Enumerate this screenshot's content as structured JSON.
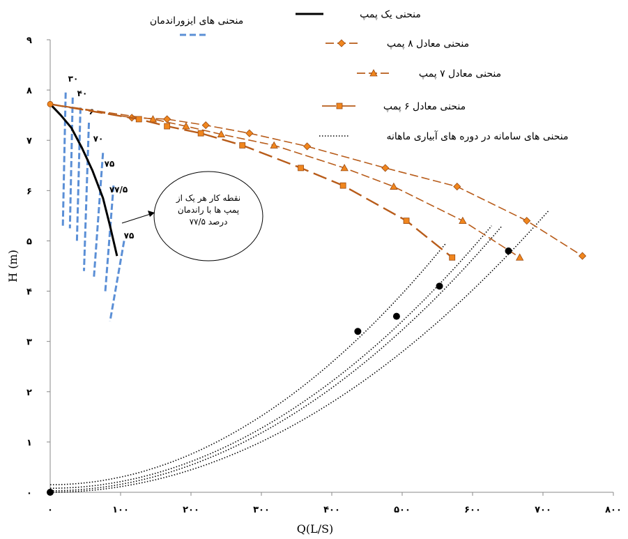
{
  "chart_data": {
    "type": "line",
    "xlabel": "Q(L/S)",
    "ylabel": "H (m)",
    "xlim": [
      0,
      800
    ],
    "ylim": [
      0,
      9
    ],
    "x_ticks": [
      {
        "value": 0,
        "label": "۰"
      },
      {
        "value": 100,
        "label": "۱۰۰"
      },
      {
        "value": 200,
        "label": "۲۰۰"
      },
      {
        "value": 300,
        "label": "۳۰۰"
      },
      {
        "value": 400,
        "label": "۴۰۰"
      },
      {
        "value": 500,
        "label": "۵۰۰"
      },
      {
        "value": 600,
        "label": "۶۰۰"
      },
      {
        "value": 700,
        "label": "۷۰۰"
      },
      {
        "value": 800,
        "label": "۸۰۰"
      }
    ],
    "y_ticks": [
      {
        "value": 0,
        "label": "۰"
      },
      {
        "value": 1,
        "label": "۱"
      },
      {
        "value": 2,
        "label": "۲"
      },
      {
        "value": 3,
        "label": "۳"
      },
      {
        "value": 4,
        "label": "۴"
      },
      {
        "value": 5,
        "label": "۵"
      },
      {
        "value": 6,
        "label": "۶"
      },
      {
        "value": 7,
        "label": "۷"
      },
      {
        "value": 8,
        "label": "۸"
      },
      {
        "value": 9,
        "label": "۹"
      }
    ],
    "grid": false,
    "legend_placement": "top-right",
    "series": [
      {
        "name": "منحنی یک پمپ",
        "style": "solid-thick",
        "color": "#000000",
        "marker": "none",
        "x": [
          0,
          15,
          30,
          45,
          60,
          75,
          85,
          95
        ],
        "y": [
          7.72,
          7.5,
          7.25,
          6.85,
          6.4,
          5.85,
          5.3,
          4.7
        ]
      },
      {
        "name": "منحنی معادل ۸ پمپ",
        "style": "dashed",
        "color": "#B85C1A",
        "marker_color": "#F0861E",
        "marker": "diamond",
        "x": [
          0,
          116,
          166,
          221,
          283,
          365,
          476,
          578,
          677,
          756
        ],
        "y": [
          7.72,
          7.45,
          7.42,
          7.3,
          7.14,
          6.88,
          6.45,
          6.08,
          5.4,
          4.7
        ]
      },
      {
        "name": "منحنی معادل ۷ پمپ",
        "style": "dashed",
        "color": "#B85C1A",
        "marker_color": "#F0861E",
        "marker": "triangle",
        "x": [
          0,
          146,
          193,
          243,
          318,
          418,
          488,
          586,
          667
        ],
        "y": [
          7.72,
          7.42,
          7.28,
          7.12,
          6.9,
          6.45,
          6.08,
          5.4,
          4.67
        ]
      },
      {
        "name": "منحنی معادل ۶ پمپ",
        "style": "long-dashed",
        "color": "#B85C1A",
        "marker_color": "#F0861E",
        "marker": "square",
        "x": [
          0,
          126,
          166,
          214,
          273,
          356,
          416,
          506,
          571
        ],
        "y": [
          7.72,
          7.42,
          7.28,
          7.14,
          6.9,
          6.45,
          6.1,
          5.4,
          4.67
        ]
      }
    ],
    "system_curves": {
      "name": "منحنی های سامانه در دوره های آبیاری ماهانه",
      "style": "dotted",
      "color": "#000000",
      "curves": [
        {
          "h0": 0.15,
          "x_end": 562,
          "y_end": 4.95
        },
        {
          "h0": 0.08,
          "x_end": 627,
          "y_end": 5.3
        },
        {
          "h0": 0.03,
          "x_end": 642,
          "y_end": 5.3
        },
        {
          "h0": 0.0,
          "x_end": 708,
          "y_end": 5.6
        }
      ],
      "operating_points": [
        {
          "x": 0,
          "y": 0
        },
        {
          "x": 437,
          "y": 3.2
        },
        {
          "x": 492,
          "y": 3.5
        },
        {
          "x": 553,
          "y": 4.1
        },
        {
          "x": 651,
          "y": 4.8
        }
      ]
    },
    "isoefficiency": {
      "name": "منحنی های ایزوراندمان",
      "color": "#5B8FD6",
      "lines": [
        {
          "label": "۳۰",
          "x1": 22,
          "y1": 7.95,
          "x2": 18,
          "y2": 5.3
        },
        {
          "label": "۴۰",
          "x1": 32,
          "y1": 7.85,
          "x2": 28,
          "y2": 5.25
        },
        {
          "label": "۶۰",
          "x1": 43,
          "y1": 7.65,
          "x2": 38,
          "y2": 5.0
        },
        {
          "label": "۷۰",
          "x1": 55,
          "y1": 7.35,
          "x2": 48,
          "y2": 4.4
        },
        {
          "label": "۷۵",
          "x1": 75,
          "y1": 6.75,
          "x2": 62,
          "y2": 4.25
        },
        {
          "label": "۷۷/۵",
          "x1": 90,
          "y1": 6.1,
          "x2": 78,
          "y2": 3.95
        },
        {
          "label": "۷۵",
          "x1": 105,
          "y1": 5.0,
          "x2": 85,
          "y2": 3.4
        }
      ]
    },
    "annotation": {
      "text_lines": [
        "نقطه کار هر یک از",
        "پمپ ها با راندمان",
        "۷۷/۵ درصد"
      ]
    }
  }
}
